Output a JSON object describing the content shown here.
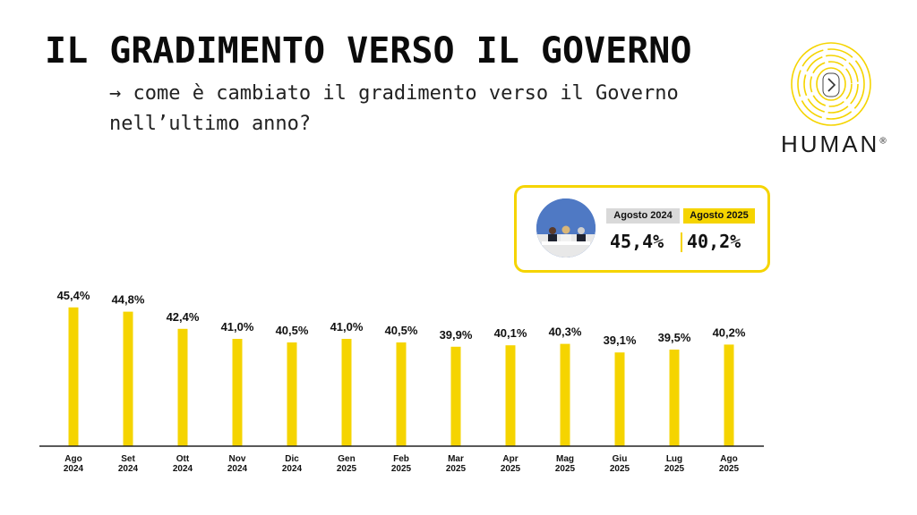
{
  "header": {
    "title": "IL GRADIMENTO VERSO IL GOVERNO",
    "subtitle": "→  come è cambiato il gradimento verso il Governo nell’ultimo anno?"
  },
  "logo": {
    "text": "HUMAN",
    "registered": "®",
    "icon": "fingerprint-arrow-icon"
  },
  "comparison": {
    "label_2024": "Agosto 2024",
    "label_2025": "Agosto 2025",
    "value_2024": "45,4%",
    "value_2025": "40,2%",
    "image": "government-press-conference-photo"
  },
  "colors": {
    "accent": "#f5d400",
    "text": "#111111",
    "axis": "#222222",
    "gray_tag": "#d9d9d9"
  },
  "chart_data": {
    "type": "bar",
    "categories": [
      [
        "Ago",
        "2024"
      ],
      [
        "Set",
        "2024"
      ],
      [
        "Ott",
        "2024"
      ],
      [
        "Nov",
        "2024"
      ],
      [
        "Dic",
        "2024"
      ],
      [
        "Gen",
        "2025"
      ],
      [
        "Feb",
        "2025"
      ],
      [
        "Mar",
        "2025"
      ],
      [
        "Apr",
        "2025"
      ],
      [
        "Mag",
        "2025"
      ],
      [
        "Giu",
        "2025"
      ],
      [
        "Lug",
        "2025"
      ],
      [
        "Ago",
        "2025"
      ]
    ],
    "values": [
      45.4,
      44.8,
      42.4,
      41.0,
      40.5,
      41.0,
      40.5,
      39.9,
      40.1,
      40.3,
      39.1,
      39.5,
      40.2
    ],
    "labels": [
      "45,4%",
      "44,8%",
      "42,4%",
      "41,0%",
      "40,5%",
      "41,0%",
      "40,5%",
      "39,9%",
      "40,1%",
      "40,3%",
      "39,1%",
      "39,5%",
      "40,2%"
    ],
    "ylim": [
      26,
      46
    ],
    "grid": false,
    "legend": "none"
  }
}
